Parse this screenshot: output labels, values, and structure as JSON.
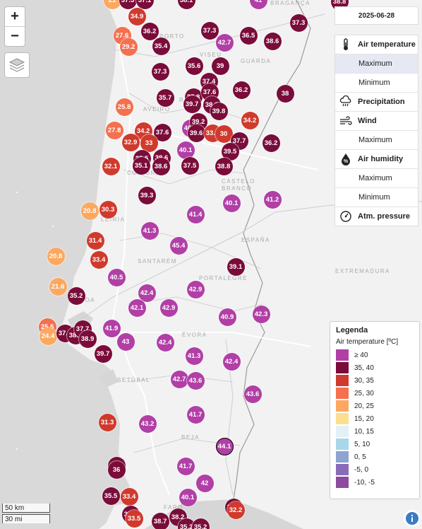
{
  "controls": {
    "zoom_in": "+",
    "zoom_out": "−",
    "layers_icon": "layers-icon"
  },
  "date": "2025-06-28",
  "menu": [
    {
      "label": "Air temperature",
      "kind": "head",
      "icon": "thermometer-icon"
    },
    {
      "label": "Maximum",
      "kind": "sub",
      "active": true
    },
    {
      "label": "Minimum",
      "kind": "sub"
    },
    {
      "label": "Precipitation",
      "kind": "head",
      "icon": "rain-cloud-icon"
    },
    {
      "label": "Wind",
      "kind": "head",
      "icon": "wind-icon"
    },
    {
      "label": "Maximum",
      "kind": "sub"
    },
    {
      "label": "Air humidity",
      "kind": "head",
      "icon": "humidity-icon"
    },
    {
      "label": "Maximum",
      "kind": "sub"
    },
    {
      "label": "Minimum",
      "kind": "sub"
    },
    {
      "label": "Atm. pressure",
      "kind": "head",
      "icon": "gauge-icon"
    }
  ],
  "legend": {
    "title": "Legenda",
    "subtitle": "Air temperature [ºC]",
    "items": [
      {
        "label": "≥ 40",
        "color": "#b13fa6"
      },
      {
        "label": "35, 40",
        "color": "#7a0c3a"
      },
      {
        "label": "30, 35",
        "color": "#d03a2d"
      },
      {
        "label": "25, 30",
        "color": "#f5704f"
      },
      {
        "label": "20, 25",
        "color": "#fca861"
      },
      {
        "label": "15, 20",
        "color": "#fbdf90"
      },
      {
        "label": "10, 15",
        "color": "#e1f1f5"
      },
      {
        "label": "5, 10",
        "color": "#a7d7e9"
      },
      {
        "label": "0, 5",
        "color": "#8fa3d2"
      },
      {
        "label": "-5, 0",
        "color": "#8a6bb8"
      },
      {
        "label": "-10, -5",
        "color": "#8e4a9f"
      }
    ]
  },
  "places": [
    {
      "label": "VISEU"
    },
    {
      "label": "GUARDA"
    },
    {
      "label": "AVEIRO"
    },
    {
      "label": "CASTELO"
    },
    {
      "label": "BRANCO"
    },
    {
      "label": "LEIRIA"
    },
    {
      "label": "SANTARÉM"
    },
    {
      "label": "PORTALEGRE"
    },
    {
      "label": "EXTREMADURA"
    },
    {
      "label": "ESPAÑA"
    },
    {
      "label": "ÉVORA"
    },
    {
      "label": "SETÚBAL"
    },
    {
      "label": "BEJA"
    },
    {
      "label": "FARO"
    },
    {
      "label": "LISBOA"
    },
    {
      "label": "PORTO"
    },
    {
      "label": "BRAGANÇA"
    },
    {
      "label": "COIMBRA"
    },
    {
      "label": "RA"
    }
  ],
  "stations": [
    {
      "t": "21"
    },
    {
      "t": "37.3"
    },
    {
      "t": "37.1"
    },
    {
      "t": "38.1"
    },
    {
      "t": "41"
    },
    {
      "t": "38.8"
    },
    {
      "t": "34.9"
    },
    {
      "t": "36.2"
    },
    {
      "t": "37.3"
    },
    {
      "t": "27.6"
    },
    {
      "t": "29.2"
    },
    {
      "t": "42.7"
    },
    {
      "t": "36.5"
    },
    {
      "t": "38.6"
    },
    {
      "t": "37.3"
    },
    {
      "t": "35.4"
    },
    {
      "t": "35.6"
    },
    {
      "t": "39"
    },
    {
      "t": "37.3"
    },
    {
      "t": "37.4"
    },
    {
      "t": "36.2"
    },
    {
      "t": "38"
    },
    {
      "t": "35.7"
    },
    {
      "t": "37.8"
    },
    {
      "t": "37.6"
    },
    {
      "t": "39.7"
    },
    {
      "t": "38.6"
    },
    {
      "t": "39.8"
    },
    {
      "t": "25.8"
    },
    {
      "t": "40.2"
    },
    {
      "t": "39.2"
    },
    {
      "t": "34.2"
    },
    {
      "t": "27.8"
    },
    {
      "t": "34.2"
    },
    {
      "t": "37.6"
    },
    {
      "t": "39.6"
    },
    {
      "t": "33.3"
    },
    {
      "t": "30"
    },
    {
      "t": "32.9"
    },
    {
      "t": "33"
    },
    {
      "t": "37.7"
    },
    {
      "t": "36.2"
    },
    {
      "t": "40.1"
    },
    {
      "t": "39.5"
    },
    {
      "t": "35.5"
    },
    {
      "t": "38.6"
    },
    {
      "t": "32.1"
    },
    {
      "t": "35.1"
    },
    {
      "t": "38.6"
    },
    {
      "t": "37.5"
    },
    {
      "t": "38.8"
    },
    {
      "t": "39.3"
    },
    {
      "t": "40.1"
    },
    {
      "t": "41.2"
    },
    {
      "t": "20.8"
    },
    {
      "t": "30.3"
    },
    {
      "t": "41.4"
    },
    {
      "t": "41.3"
    },
    {
      "t": "31.4"
    },
    {
      "t": "45.4"
    },
    {
      "t": "20.8"
    },
    {
      "t": "33.4"
    },
    {
      "t": "39.1"
    },
    {
      "t": "40.5"
    },
    {
      "t": "21.6"
    },
    {
      "t": "35.2"
    },
    {
      "t": "42.4"
    },
    {
      "t": "42.9"
    },
    {
      "t": "42.1"
    },
    {
      "t": "42.9"
    },
    {
      "t": "42.3"
    },
    {
      "t": "40.9"
    },
    {
      "t": "25.5"
    },
    {
      "t": "24.4"
    },
    {
      "t": "37.1"
    },
    {
      "t": "38.3"
    },
    {
      "t": "37.7"
    },
    {
      "t": "38.9"
    },
    {
      "t": "41.9"
    },
    {
      "t": "43"
    },
    {
      "t": "42.4"
    },
    {
      "t": "39.7"
    },
    {
      "t": "41.3"
    },
    {
      "t": "42.4"
    },
    {
      "t": "42.7"
    },
    {
      "t": "43.6"
    },
    {
      "t": "43.6"
    },
    {
      "t": "41.7"
    },
    {
      "t": "31.3"
    },
    {
      "t": "43.2"
    },
    {
      "t": "44.1",
      "hl": true
    },
    {
      "t": "36.8"
    },
    {
      "t": "36"
    },
    {
      "t": "41.7"
    },
    {
      "t": "42"
    },
    {
      "t": "35.5"
    },
    {
      "t": "33.4"
    },
    {
      "t": "40.1"
    },
    {
      "t": "35.9"
    },
    {
      "t": "35.8"
    },
    {
      "t": "32.2"
    },
    {
      "t": "33.5"
    },
    {
      "t": "38.7"
    },
    {
      "t": "38.2"
    },
    {
      "t": "35.2"
    },
    {
      "t": "35.2"
    }
  ],
  "scale": {
    "km": "50 km",
    "mi": "30 mi"
  },
  "info_icon": "info-icon"
}
